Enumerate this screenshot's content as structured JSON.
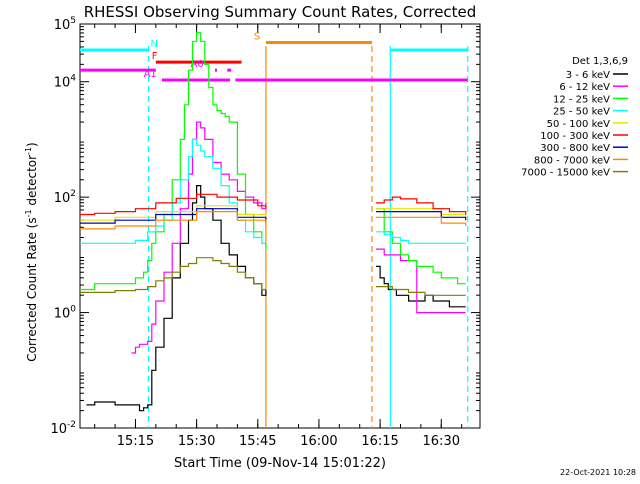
{
  "chart_data": {
    "type": "line",
    "title": "RHESSI Observing Summary Count Rates, Corrected",
    "xlabel": "Start Time (09-Nov-14 15:01:22)",
    "ylabel_parts": [
      "Corrected Count Rate (s",
      "-1",
      " detector",
      "-1",
      ")"
    ],
    "y_scale": "log",
    "ylim_exp": [
      -2,
      5
    ],
    "y_tick_exps": [
      -2,
      0,
      2,
      4,
      5
    ],
    "x_tick_labels": [
      "15:15",
      "15:30",
      "15:45",
      "16:00",
      "16:15",
      "16:30"
    ],
    "x_tick_minutes": [
      15,
      30,
      45,
      60,
      75,
      90
    ],
    "xlim_minutes": [
      1.4,
      99.5
    ],
    "footer_date": "22-Oct-2021 10:28",
    "legend": {
      "title": "Det 1,3,6,9",
      "placement": "right",
      "entries": [
        {
          "label": "3 - 6 keV",
          "color": "#000000"
        },
        {
          "label": "6 - 12 keV",
          "color": "#ff00ff"
        },
        {
          "label": "12 - 25 keV",
          "color": "#00ff00"
        },
        {
          "label": "25 - 50 keV",
          "color": "#00ffff"
        },
        {
          "label": "50 - 100 keV",
          "color": "#e6e600"
        },
        {
          "label": "100 - 300 keV",
          "color": "#ff0000"
        },
        {
          "label": "300 - 800 keV",
          "color": "#0000cc"
        },
        {
          "label": "800 - 7000 keV",
          "color": "#ff8800"
        },
        {
          "label": "7000 - 15000 keV",
          "color": "#808000"
        }
      ]
    },
    "flags": [
      {
        "label": "N",
        "color": "#00ffff",
        "segments": [
          [
            1.4,
            18.2
          ],
          [
            77.5,
            96.5
          ]
        ],
        "y_exp": 4.55
      },
      {
        "label": "S",
        "color": "#ff8800",
        "segments": [
          [
            47,
            73
          ]
        ],
        "y_exp": 4.68
      },
      {
        "label": "F",
        "color": "#ff0000",
        "segments": [
          [
            20,
            41
          ]
        ],
        "y_exp": 4.34
      },
      {
        "label": "A0",
        "color": "#ff00ff",
        "segments": [
          [
            1.4,
            20
          ],
          [
            34.5,
            35
          ],
          [
            37.5,
            38.5
          ]
        ],
        "y_exp": 4.2
      },
      {
        "label": "A1",
        "color": "#ff00ff",
        "segments": [
          [
            21.5,
            38.2
          ],
          [
            39.5,
            96.5
          ]
        ],
        "y_exp": 4.03
      }
    ],
    "vertical_lines": [
      {
        "minute": 18.2,
        "color": "#00ffff",
        "style": "dashed"
      },
      {
        "minute": 47,
        "color": "#ff8800",
        "style": "solid"
      },
      {
        "minute": 73,
        "color": "#ff8800",
        "style": "dashed"
      },
      {
        "minute": 77.5,
        "color": "#00ffff",
        "style": "solid"
      },
      {
        "minute": 96.5,
        "color": "#00ffff",
        "style": "dashed"
      }
    ],
    "series": [
      {
        "name": "3 - 6 keV",
        "color": "#000000",
        "x": [
          3,
          5,
          10,
          16,
          17,
          18,
          19,
          20,
          22,
          24,
          26,
          28,
          29,
          30,
          31,
          32,
          34,
          36,
          38,
          40,
          42,
          44,
          46,
          47,
          null,
          74,
          75,
          76,
          77,
          78,
          79,
          80,
          82,
          84,
          86,
          88,
          90,
          92,
          94,
          96
        ],
        "y": [
          -1.6,
          -1.55,
          -1.6,
          -1.7,
          -1.65,
          -1.6,
          -1.0,
          -0.6,
          -0.1,
          0.6,
          1.2,
          1.6,
          1.9,
          2.2,
          2.0,
          1.8,
          1.6,
          1.2,
          1.0,
          0.8,
          0.6,
          0.5,
          0.3,
          0.4,
          null,
          0.8,
          0.6,
          0.5,
          0.4,
          0.4,
          0.3,
          0.3,
          0.2,
          0.2,
          0.3,
          0.2,
          0.2,
          0.1,
          0.1,
          0.1
        ]
      },
      {
        "name": "6 - 12 keV",
        "color": "#ff00ff",
        "x": [
          14,
          15,
          16,
          18,
          19,
          20,
          22,
          24,
          26,
          28,
          29,
          30,
          31,
          32,
          34,
          36,
          38,
          40,
          42,
          44,
          46,
          47,
          null,
          74,
          76,
          78,
          80,
          82,
          84,
          86,
          88,
          90,
          92,
          94,
          96
        ],
        "y": [
          -0.7,
          -0.6,
          -0.55,
          -0.5,
          -0.2,
          0.2,
          0.7,
          1.2,
          1.8,
          2.4,
          3.0,
          3.3,
          3.2,
          3.0,
          2.6,
          2.4,
          2.3,
          2.1,
          2.0,
          1.9,
          1.8,
          1.9,
          null,
          1.1,
          1.0,
          1.0,
          0.9,
          0.9,
          0.0,
          0.0,
          0.0,
          0.0,
          0.0,
          0.0,
          0.0
        ]
      },
      {
        "name": "12 - 25 keV",
        "color": "#00ff00",
        "x": [
          1.4,
          5,
          10,
          15,
          17,
          18,
          19,
          20,
          22,
          24,
          26,
          27,
          28,
          29,
          30,
          31,
          32,
          33,
          34,
          35,
          36,
          37,
          38,
          40,
          42,
          44,
          46,
          47,
          null,
          74,
          76,
          78,
          80,
          82,
          84,
          86,
          88,
          90,
          92,
          94,
          96
        ],
        "y": [
          0.4,
          0.5,
          0.5,
          0.6,
          0.7,
          0.9,
          1.2,
          1.4,
          1.7,
          2.3,
          3.0,
          3.6,
          4.2,
          4.7,
          4.85,
          4.7,
          4.3,
          3.9,
          3.6,
          3.5,
          3.45,
          3.4,
          3.3,
          2.4,
          1.7,
          1.4,
          1.2,
          1.1,
          null,
          1.8,
          1.4,
          1.2,
          1.0,
          0.9,
          0.8,
          0.8,
          0.7,
          0.6,
          0.6,
          0.5,
          0.5
        ]
      },
      {
        "name": "25 - 50 keV",
        "color": "#00ffff",
        "x": [
          1.4,
          5,
          10,
          15,
          18,
          20,
          22,
          24,
          26,
          28,
          29,
          30,
          31,
          32,
          34,
          36,
          38,
          40,
          42,
          44,
          46,
          47,
          null,
          74,
          76,
          78,
          80,
          82,
          84,
          86,
          88,
          90,
          92,
          94,
          96
        ],
        "y": [
          1.2,
          1.2,
          1.2,
          1.25,
          1.4,
          1.5,
          1.6,
          1.9,
          2.3,
          2.7,
          3.0,
          2.9,
          2.8,
          2.7,
          2.5,
          2.2,
          1.9,
          1.6,
          1.4,
          1.3,
          1.2,
          1.2,
          null,
          1.4,
          1.35,
          1.3,
          1.25,
          1.2,
          1.2,
          1.2,
          1.2,
          1.2,
          1.2,
          1.2,
          1.2
        ]
      },
      {
        "name": "50 - 100 keV",
        "color": "#e6e600",
        "x": [
          1.4,
          10,
          20,
          30,
          40,
          47,
          null,
          74,
          80,
          90,
          96
        ],
        "y": [
          1.6,
          1.65,
          1.75,
          1.85,
          1.7,
          1.6,
          null,
          1.8,
          1.8,
          1.7,
          1.6
        ]
      },
      {
        "name": "100 - 300 keV",
        "color": "#ff0000",
        "x": [
          1.4,
          5,
          10,
          15,
          20,
          25,
          30,
          35,
          40,
          45,
          47,
          null,
          74,
          76,
          78,
          80,
          84,
          88,
          92,
          96
        ],
        "y": [
          1.7,
          1.72,
          1.75,
          1.8,
          1.9,
          1.98,
          2.05,
          2.0,
          1.95,
          1.85,
          1.8,
          null,
          1.9,
          1.95,
          2.0,
          1.97,
          1.9,
          1.8,
          1.75,
          1.7
        ]
      },
      {
        "name": "300 - 800 keV",
        "color": "#0000cc",
        "x": [
          1.4,
          10,
          20,
          30,
          40,
          47,
          null,
          74,
          80,
          90,
          96
        ],
        "y": [
          1.55,
          1.6,
          1.7,
          1.8,
          1.65,
          1.55,
          null,
          1.75,
          1.75,
          1.65,
          1.6
        ]
      },
      {
        "name": "800 - 7000 keV",
        "color": "#ff8800",
        "x": [
          1.4,
          10,
          20,
          30,
          40,
          47,
          null,
          74,
          80,
          90,
          96
        ],
        "y": [
          1.45,
          1.5,
          1.6,
          1.75,
          1.6,
          1.45,
          null,
          1.65,
          1.65,
          1.55,
          1.5
        ]
      },
      {
        "name": "7000 - 15000 keV",
        "color": "#808000",
        "x": [
          1.4,
          5,
          10,
          15,
          18,
          20,
          22,
          24,
          26,
          28,
          30,
          32,
          34,
          36,
          38,
          40,
          42,
          44,
          46,
          47,
          null,
          74,
          78,
          82,
          86,
          90,
          94,
          96
        ],
        "y": [
          0.35,
          0.35,
          0.38,
          0.4,
          0.45,
          0.55,
          0.6,
          0.7,
          0.8,
          0.85,
          0.95,
          0.95,
          0.9,
          0.85,
          0.8,
          0.7,
          0.6,
          0.5,
          0.4,
          0.4,
          null,
          0.45,
          0.4,
          0.35,
          0.3,
          0.3,
          0.3,
          0.3
        ]
      }
    ]
  }
}
